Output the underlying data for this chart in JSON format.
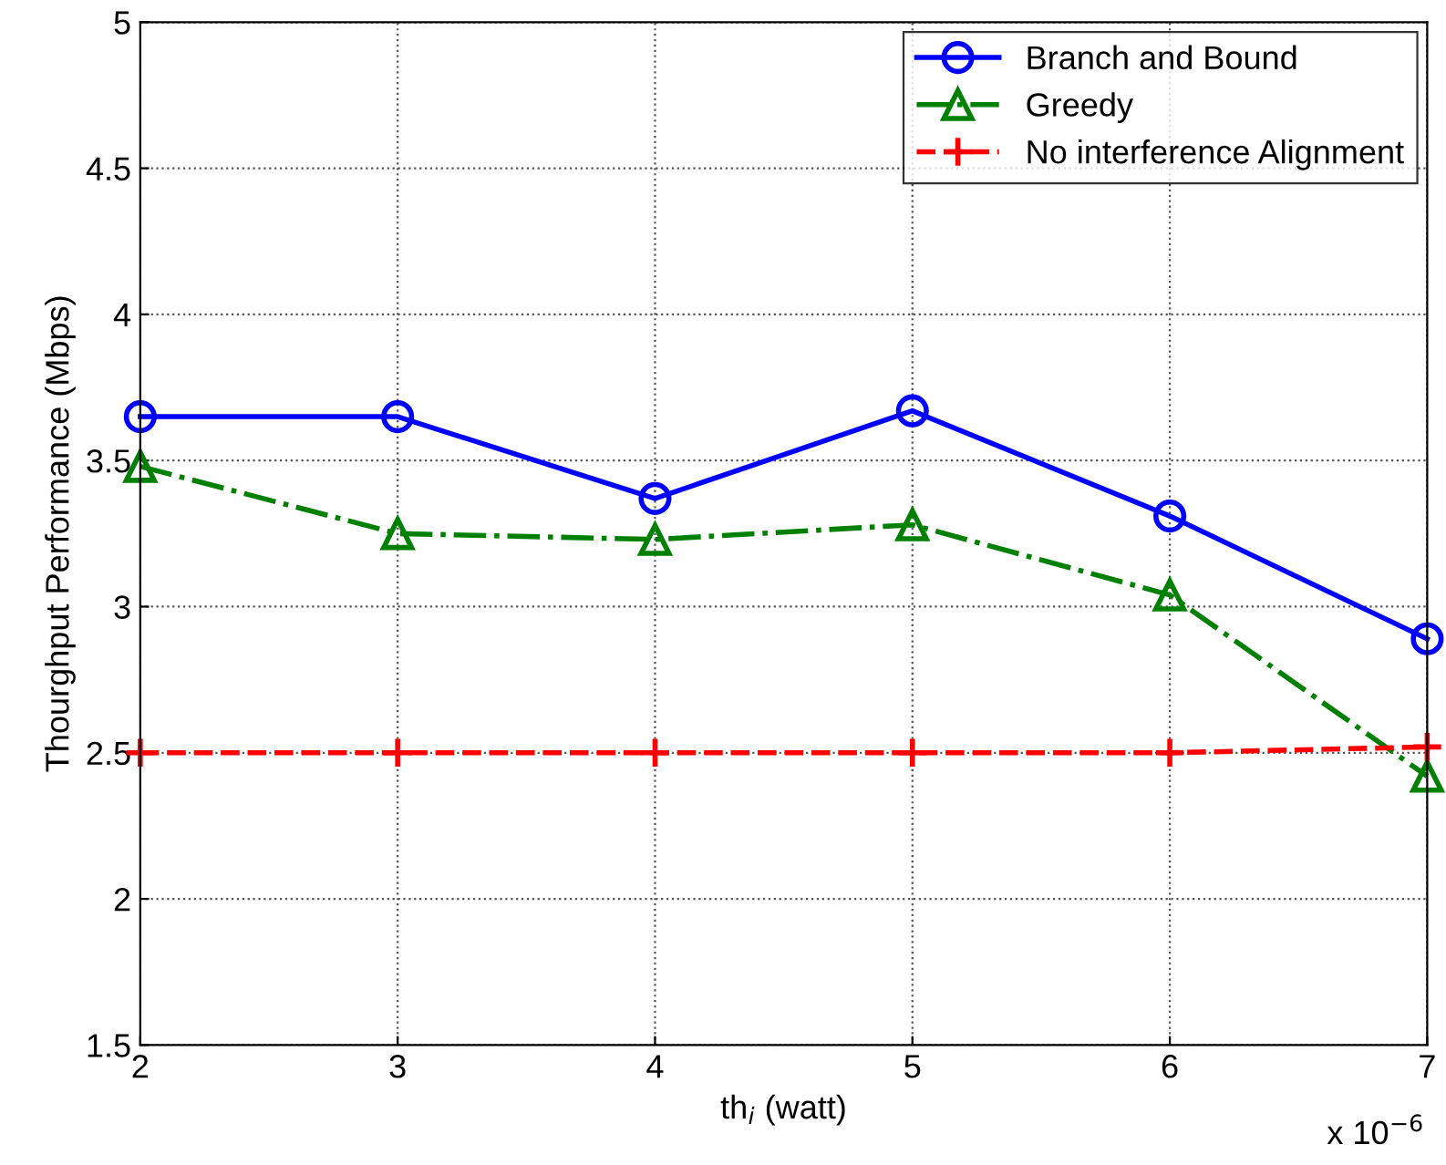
{
  "chart_data": {
    "type": "line",
    "xlabel": "th$_{i}$ (watt)",
    "ylabel": "Thourghput Performance (Mbps)",
    "x": [
      2,
      3,
      4,
      5,
      6,
      7
    ],
    "series": [
      {
        "name": "Branch and Bound",
        "color": "#0000ff",
        "marker": "circle",
        "line_style": "solid",
        "values": [
          3.65,
          3.65,
          3.37,
          3.67,
          3.31,
          2.89
        ]
      },
      {
        "name": "Greedy",
        "color": "#008000",
        "marker": "triangle",
        "line_style": "dashdot",
        "values": [
          3.48,
          3.25,
          3.23,
          3.28,
          3.04,
          2.42
        ]
      },
      {
        "name": "No interference Alignment",
        "color": "#ff0000",
        "marker": "cross",
        "line_style": "dashed",
        "values": [
          2.5,
          2.5,
          2.5,
          2.5,
          2.5,
          2.52
        ]
      }
    ],
    "xlim": [
      2,
      7
    ],
    "xticks": [
      2,
      3,
      4,
      5,
      6,
      7
    ],
    "ylim": [
      1.5,
      5
    ],
    "yticks": [
      1.5,
      2,
      2.5,
      3,
      3.5,
      4,
      4.5,
      5
    ],
    "annotations": [
      "x 10$^{−6}$"
    ],
    "grid": true,
    "legend": "top right"
  }
}
